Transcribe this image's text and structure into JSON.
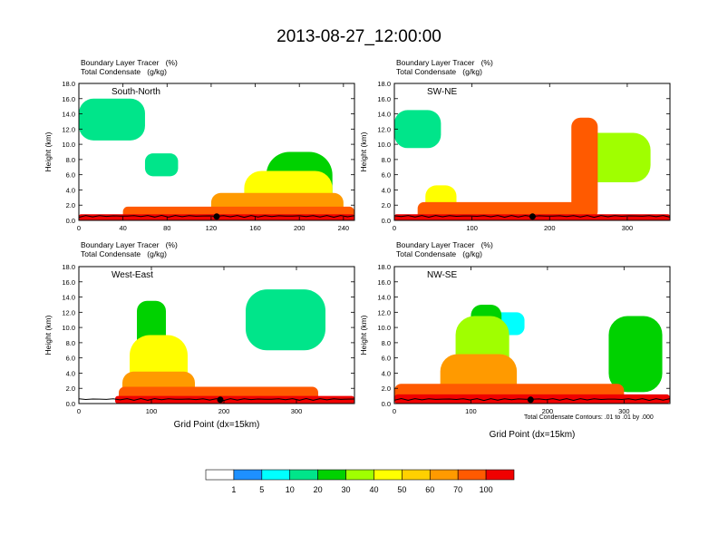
{
  "title": "2013-08-27_12:00:00",
  "panel_field_labels": [
    "Boundary Layer Tracer",
    "Total Condensate"
  ],
  "panel_field_units": [
    "(%)",
    "(g/kg)"
  ],
  "footnote": "Total Condensate Contours: .01 to .01 by .000",
  "colorbar": {
    "levels": [
      "1",
      "5",
      "10",
      "20",
      "30",
      "40",
      "50",
      "60",
      "70",
      "100"
    ],
    "colors": [
      "#ffffff",
      "#1e90ff",
      "#00ffff",
      "#00e58a",
      "#00d200",
      "#a0ff00",
      "#ffff00",
      "#ffd000",
      "#ff9a00",
      "#ff5a00",
      "#f00000"
    ]
  },
  "chart_data": [
    {
      "type": "heatmap",
      "panel_title": "South-North",
      "xlabel": "",
      "ylabel": "Height (km)",
      "x_ticks": [
        0,
        40,
        80,
        120,
        160,
        200,
        240
      ],
      "y_ticks": [
        "0.0",
        "2.0",
        "4.0",
        "6.0",
        "8.0",
        "10.0",
        "12.0",
        "14.0",
        "16.0",
        "18.0"
      ],
      "xlim": [
        0,
        250
      ],
      "ylim": [
        0,
        18
      ],
      "marker_x": 125,
      "tracer_blobs": [
        {
          "x": [
            0,
            250
          ],
          "ytop": 0.8,
          "value": 100
        },
        {
          "x": [
            40,
            250
          ],
          "ytop": 1.8,
          "value": 70
        },
        {
          "x": [
            120,
            240
          ],
          "ytop": 3.6,
          "value": 60
        },
        {
          "x": [
            150,
            230
          ],
          "ytop": 6.5,
          "value": 40
        },
        {
          "x": [
            170,
            230
          ],
          "ytop": 9.0,
          "value": 20
        },
        {
          "x": [
            0,
            60
          ],
          "ytop": 16.0,
          "bottom": 10.5,
          "value": 10
        },
        {
          "x": [
            60,
            90
          ],
          "ytop": 8.8,
          "bottom": 5.8,
          "value": 10
        }
      ]
    },
    {
      "type": "heatmap",
      "panel_title": "SW-NE",
      "xlabel": "",
      "ylabel": "Height (km)",
      "x_ticks": [
        0,
        100,
        200,
        300
      ],
      "y_ticks": [
        "0.0",
        "2.0",
        "4.0",
        "6.0",
        "8.0",
        "10.0",
        "12.0",
        "14.0",
        "16.0",
        "18.0"
      ],
      "xlim": [
        0,
        355
      ],
      "ylim": [
        0,
        18
      ],
      "marker_x": 178,
      "tracer_blobs": [
        {
          "x": [
            0,
            355
          ],
          "ytop": 0.8,
          "value": 100
        },
        {
          "x": [
            30,
            250
          ],
          "ytop": 2.4,
          "value": 70
        },
        {
          "x": [
            40,
            80
          ],
          "ytop": 4.6,
          "value": 40
        },
        {
          "x": [
            228,
            262
          ],
          "ytop": 13.5,
          "value": 70
        },
        {
          "x": [
            240,
            330
          ],
          "ytop": 11.5,
          "bottom": 5.0,
          "value": 30
        },
        {
          "x": [
            0,
            60
          ],
          "ytop": 14.5,
          "bottom": 9.5,
          "value": 10
        }
      ]
    },
    {
      "type": "heatmap",
      "panel_title": "West-East",
      "xlabel": "Grid Point (dx=15km)",
      "ylabel": "Height (km)",
      "x_ticks": [
        0,
        100,
        200,
        300
      ],
      "y_ticks": [
        "0.0",
        "2.0",
        "4.0",
        "6.0",
        "8.0",
        "10.0",
        "12.0",
        "14.0",
        "16.0",
        "18.0"
      ],
      "xlim": [
        0,
        380
      ],
      "ylim": [
        0,
        18
      ],
      "marker_x": 195,
      "tracer_blobs": [
        {
          "x": [
            50,
            380
          ],
          "ytop": 1.0,
          "value": 100
        },
        {
          "x": [
            55,
            330
          ],
          "ytop": 2.2,
          "value": 70
        },
        {
          "x": [
            60,
            160
          ],
          "ytop": 4.2,
          "value": 60
        },
        {
          "x": [
            70,
            150
          ],
          "ytop": 9.0,
          "value": 40
        },
        {
          "x": [
            80,
            120
          ],
          "ytop": 13.5,
          "value": 20
        },
        {
          "x": [
            230,
            340
          ],
          "ytop": 15.0,
          "bottom": 7.0,
          "value": 10
        }
      ]
    },
    {
      "type": "heatmap",
      "panel_title": "NW-SE",
      "xlabel": "Grid Point (dx=15km)",
      "ylabel": "Height (km)",
      "x_ticks": [
        0,
        100,
        200,
        300
      ],
      "y_ticks": [
        "0.0",
        "2.0",
        "4.0",
        "6.0",
        "8.0",
        "10.0",
        "12.0",
        "14.0",
        "16.0",
        "18.0"
      ],
      "xlim": [
        0,
        360
      ],
      "ylim": [
        0,
        18
      ],
      "marker_x": 178,
      "tracer_blobs": [
        {
          "x": [
            0,
            360
          ],
          "ytop": 1.2,
          "value": 100
        },
        {
          "x": [
            0,
            300
          ],
          "ytop": 2.6,
          "value": 70
        },
        {
          "x": [
            60,
            160
          ],
          "ytop": 6.5,
          "value": 60
        },
        {
          "x": [
            80,
            150
          ],
          "ytop": 11.5,
          "value": 30
        },
        {
          "x": [
            100,
            140
          ],
          "ytop": 13.0,
          "value": 20
        },
        {
          "x": [
            280,
            350
          ],
          "ytop": 11.5,
          "bottom": 1.5,
          "value": 20
        },
        {
          "x": [
            100,
            170
          ],
          "ytop": 12.0,
          "bottom": 9.0,
          "value": 5
        }
      ]
    }
  ]
}
